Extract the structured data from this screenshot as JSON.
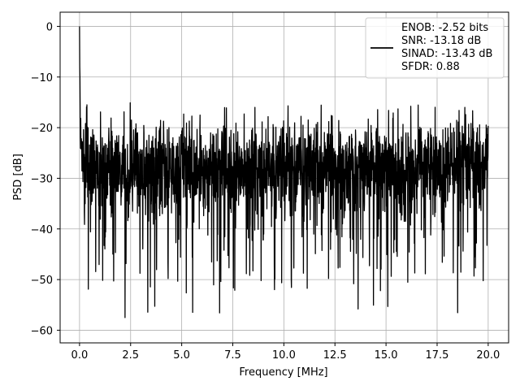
{
  "chart_data": {
    "type": "line",
    "title": "",
    "xlabel": "Frequency [MHz]",
    "ylabel": "PSD [dB]",
    "xlim": [
      -0.95,
      21.0
    ],
    "ylim": [
      -62.5,
      2.8
    ],
    "grid": true,
    "x_ticks": [
      0.0,
      2.5,
      5.0,
      7.5,
      10.0,
      12.5,
      15.0,
      17.5,
      20.0
    ],
    "x_tick_labels": [
      "0.0",
      "2.5",
      "5.0",
      "7.5",
      "10.0",
      "12.5",
      "15.0",
      "17.5",
      "20.0"
    ],
    "y_ticks": [
      0,
      -10,
      -20,
      -30,
      -40,
      -50,
      -60
    ],
    "y_tick_labels": [
      "0",
      "−10",
      "−20",
      "−30",
      "−40",
      "−50",
      "−60"
    ],
    "line_color": "#000000",
    "legend": {
      "placement": "top-right",
      "entries": [
        "ENOB: -2.52 bits",
        "SNR: -13.18 dB",
        "SINAD: -13.43 dB",
        "SFDR: 0.88"
      ]
    },
    "series": [
      {
        "x_start": 0.0,
        "x_end": 20.0,
        "num_points": 2049,
        "noise_floor_db": -28,
        "upper_envelope_db": -15,
        "lower_envelope_db": -59.3,
        "peak_db": 0,
        "peak_x": 0.0
      }
    ]
  }
}
